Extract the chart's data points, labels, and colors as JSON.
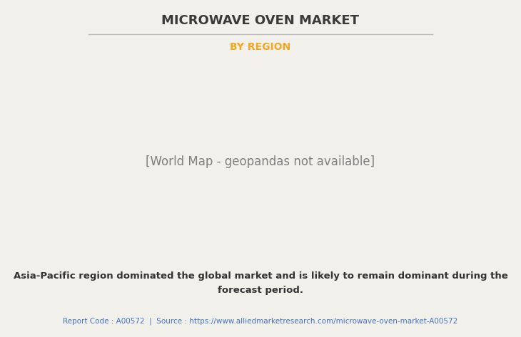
{
  "title": "MICROWAVE OVEN MARKET",
  "subtitle": "BY REGION",
  "title_color": "#3a3a3a",
  "subtitle_color": "#F5A623",
  "bg_color": "#F2F0EA",
  "body_text_line1": "Asia-Pacific region dominated the global market and is likely to remain dominant during the",
  "body_text_line2": "forecast period.",
  "footer_text": "Report Code : A00572  |  Source : https://www.alliedmarketresearch.com/microwave-oven-market-A00572",
  "footer_color": "#4472C4",
  "body_text_color": "#333333",
  "land_color": "#8BBF87",
  "usa_color": "#E8EBF0",
  "border_color": "#7AAAC8",
  "shadow_color": "#909090",
  "ocean_color": "#F2F0EA",
  "line_color": "#BBBBBB"
}
